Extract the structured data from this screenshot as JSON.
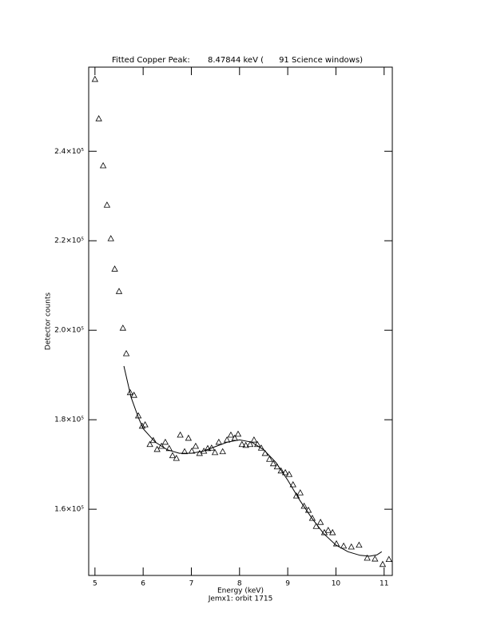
{
  "chart_data": {
    "type": "scatter",
    "title": "Fitted Copper Peak:       8.47844 keV (      91 Science windows)",
    "subtitle": "Jemx1: orbit 1715",
    "x_label": "Energy (keV)",
    "y_label": "Detector counts",
    "xlim": [
      4.87,
      11.17
    ],
    "ylim": [
      145200,
      258800
    ],
    "xticks": [
      5,
      6,
      7,
      8,
      9,
      10,
      11
    ],
    "yticks": [
      {
        "value": 160000,
        "label": "1.6×10⁵"
      },
      {
        "value": 180000,
        "label": "1.8×10⁵"
      },
      {
        "value": 200000,
        "label": "2.0×10⁵"
      },
      {
        "value": 220000,
        "label": "2.2×10⁵"
      },
      {
        "value": 240000,
        "label": "2.4×10⁵"
      }
    ],
    "color": "#000000",
    "series": [
      {
        "mode": "markers",
        "marker": "triangle",
        "x": [
          5.0,
          5.08,
          5.17,
          5.25,
          5.33,
          5.41,
          5.5,
          5.58,
          5.65,
          5.73,
          5.81,
          5.9,
          5.98,
          6.04,
          6.14,
          6.21,
          6.29,
          6.38,
          6.46,
          6.54,
          6.61,
          6.69,
          6.77,
          6.86,
          6.94,
          7.01,
          7.09,
          7.17,
          7.26,
          7.34,
          7.42,
          7.49,
          7.57,
          7.65,
          7.74,
          7.82,
          7.9,
          7.97,
          8.05,
          8.13,
          8.22,
          8.3,
          8.37,
          8.45,
          8.53,
          8.62,
          8.7,
          8.78,
          8.86,
          8.95,
          9.03,
          9.11,
          9.18,
          9.26,
          9.34,
          9.43,
          9.51,
          9.59,
          9.68,
          9.76,
          9.84,
          9.93,
          10.01,
          10.16,
          10.32,
          10.48,
          10.65,
          10.81,
          10.97,
          11.1
        ],
        "values": [
          256100,
          247300,
          236800,
          228000,
          220500,
          213700,
          208700,
          200500,
          194800,
          186100,
          185500,
          180900,
          178600,
          178900,
          174500,
          175400,
          173400,
          174100,
          175000,
          173600,
          172000,
          171400,
          176600,
          172900,
          175900,
          173000,
          174100,
          172500,
          173000,
          173600,
          173700,
          172700,
          175000,
          172900,
          175500,
          176600,
          175900,
          176800,
          174500,
          174300,
          174500,
          175500,
          174500,
          173700,
          172500,
          171200,
          170200,
          169500,
          168600,
          168200,
          167800,
          165500,
          163000,
          163700,
          160700,
          159800,
          158000,
          156200,
          157100,
          154800,
          155300,
          154800,
          152300,
          151800,
          151600,
          152000,
          149100,
          148900,
          147700,
          148800
        ]
      },
      {
        "mode": "line",
        "x": [
          5.6,
          5.75,
          5.9,
          6.0,
          6.25,
          6.5,
          6.75,
          7.0,
          7.25,
          7.5,
          7.75,
          8.0,
          8.25,
          8.5,
          8.75,
          9.0,
          9.25,
          9.5,
          9.75,
          10.0,
          10.25,
          10.5,
          10.7,
          10.85,
          10.95
        ],
        "values": [
          192000,
          185000,
          180500,
          178000,
          175000,
          173300,
          172500,
          172500,
          173000,
          174000,
          175000,
          175500,
          175000,
          173300,
          170500,
          166500,
          162000,
          158000,
          154500,
          152000,
          150500,
          149700,
          149500,
          149800,
          150500
        ]
      }
    ]
  }
}
